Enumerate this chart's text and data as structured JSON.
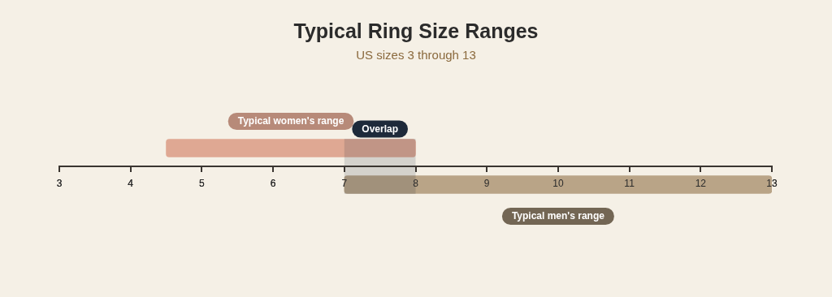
{
  "chart_data": {
    "type": "bar",
    "orientation": "horizontal",
    "title": "Typical Ring Size Ranges",
    "subtitle": "US sizes 3 through 13",
    "categories": [
      null,
      null
    ],
    "base": [
      4.5,
      7
    ],
    "values": [
      3.5,
      6
    ],
    "colors": [
      "#dfa893",
      "#b9a487"
    ],
    "annotations": [
      "Typical women's range",
      "Typical men's range"
    ],
    "bands": [
      {
        "axis": "x",
        "from": 7,
        "to": 8,
        "label": "Overlap",
        "color": "#1e2a3a"
      }
    ],
    "xlim": [
      3,
      13
    ],
    "xticks": [
      3,
      4,
      5,
      6,
      7,
      8,
      9,
      10,
      11,
      12,
      13
    ],
    "grid": false,
    "legend": false
  }
}
